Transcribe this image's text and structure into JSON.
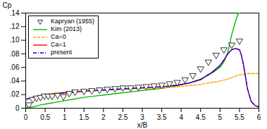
{
  "chart_data": {
    "type": "line",
    "xlabel": "x/B",
    "ylabel": "Cp",
    "xlim": [
      0,
      6
    ],
    "ylim": [
      0,
      0.14
    ],
    "xticks": [
      0,
      0.5,
      1,
      1.5,
      2,
      2.5,
      3,
      3.5,
      4,
      4.5,
      5,
      5.5,
      6
    ],
    "yticks": [
      0,
      {
        "value": 0.02,
        "label": ".02"
      },
      {
        "value": 0.04,
        "label": ".04"
      },
      {
        "value": 0.06,
        "label": ".06"
      },
      {
        "value": 0.08,
        "label": ".08"
      },
      {
        "value": 0.1,
        "label": ".10"
      },
      {
        "value": 0.12,
        "label": ".12"
      },
      {
        "value": 0.14,
        "label": ".14"
      }
    ],
    "legend": "upper left",
    "grid": false,
    "series": [
      {
        "name": "Kapryan (1955)",
        "type": "scatter",
        "marker": "triangle_down",
        "color": "#000000",
        "x": [
          0.08,
          0.18,
          0.28,
          0.38,
          0.48,
          0.58,
          0.68,
          0.82,
          0.97,
          1.12,
          1.27,
          1.5,
          1.7,
          1.9,
          2.1,
          2.3,
          2.5,
          2.7,
          2.9,
          3.1,
          3.3,
          3.5,
          3.7,
          3.9,
          4.1,
          4.3,
          4.5,
          4.7,
          4.9,
          5.1,
          5.3,
          5.5
        ],
        "values": [
          0.005,
          0.013,
          0.015,
          0.016,
          0.018,
          0.018,
          0.018,
          0.019,
          0.017,
          0.022,
          0.024,
          0.025,
          0.026,
          0.027,
          0.028,
          0.029,
          0.03,
          0.03,
          0.031,
          0.032,
          0.033,
          0.034,
          0.036,
          0.038,
          0.042,
          0.048,
          0.058,
          0.068,
          0.078,
          0.086,
          0.093,
          0.099
        ]
      },
      {
        "name": "Kim (2013)",
        "type": "line",
        "line_style": "solid",
        "color": "#00bb00",
        "x": [
          0.01,
          0.2,
          0.4,
          0.6,
          0.8,
          1.0,
          1.2,
          1.5,
          1.8,
          2.1,
          2.4,
          2.7,
          3.0,
          3.3,
          3.6,
          3.9,
          4.2,
          4.5,
          4.8,
          5.0,
          5.1,
          5.2,
          5.25,
          5.3,
          5.35,
          5.4,
          5.45,
          5.48,
          5.5
        ],
        "values": [
          0.001,
          0.002,
          0.005,
          0.007,
          0.009,
          0.011,
          0.013,
          0.016,
          0.018,
          0.02,
          0.022,
          0.024,
          0.026,
          0.028,
          0.03,
          0.033,
          0.037,
          0.043,
          0.052,
          0.06,
          0.068,
          0.082,
          0.095,
          0.108,
          0.118,
          0.128,
          0.136,
          0.14,
          0.14
        ]
      },
      {
        "name": "Ca=0",
        "type": "line",
        "line_style": "dashed",
        "color": "#FFA500",
        "x": [
          0.0,
          0.3,
          0.6,
          1.0,
          1.5,
          2.0,
          2.5,
          3.0,
          3.5,
          4.0,
          4.5,
          5.0,
          5.2,
          5.4,
          5.5,
          5.6,
          5.7,
          5.8,
          5.9,
          6.0
        ],
        "values": [
          0.013,
          0.018,
          0.021,
          0.024,
          0.026,
          0.027,
          0.028,
          0.029,
          0.03,
          0.032,
          0.035,
          0.04,
          0.043,
          0.047,
          0.049,
          0.05,
          0.051,
          0.051,
          0.051,
          0.051
        ]
      },
      {
        "name": "Ca=1",
        "type": "line",
        "line_style": "solid",
        "color": "#FF0000",
        "x": [
          0.0,
          0.2,
          0.4,
          0.6,
          0.9,
          1.2,
          1.5,
          1.8,
          2.1,
          2.4,
          2.7,
          3.0,
          3.3,
          3.6,
          3.9,
          4.2,
          4.5,
          4.8,
          5.0,
          5.1,
          5.2,
          5.3,
          5.4,
          5.45,
          5.5,
          5.52,
          5.55,
          5.6,
          5.65,
          5.7,
          5.8,
          5.9,
          6.0
        ],
        "values": [
          0.013,
          0.016,
          0.018,
          0.02,
          0.022,
          0.023,
          0.025,
          0.026,
          0.027,
          0.028,
          0.029,
          0.03,
          0.031,
          0.032,
          0.034,
          0.037,
          0.042,
          0.053,
          0.063,
          0.071,
          0.08,
          0.086,
          0.088,
          0.087,
          0.086,
          0.083,
          0.078,
          0.065,
          0.048,
          0.03,
          0.01,
          0.004,
          0.002
        ]
      },
      {
        "name": "present",
        "type": "line",
        "line_style": "dashdot",
        "color": "#0000EE",
        "x": [
          0.0,
          0.2,
          0.4,
          0.6,
          0.9,
          1.2,
          1.5,
          1.8,
          2.1,
          2.4,
          2.7,
          3.0,
          3.3,
          3.6,
          3.9,
          4.2,
          4.5,
          4.8,
          5.0,
          5.1,
          5.2,
          5.3,
          5.4,
          5.45,
          5.5,
          5.52,
          5.55,
          5.6,
          5.65,
          5.7,
          5.8,
          5.9,
          6.0
        ],
        "values": [
          0.013,
          0.016,
          0.018,
          0.02,
          0.022,
          0.023,
          0.025,
          0.026,
          0.027,
          0.028,
          0.029,
          0.03,
          0.031,
          0.032,
          0.034,
          0.037,
          0.042,
          0.053,
          0.063,
          0.071,
          0.08,
          0.086,
          0.088,
          0.087,
          0.086,
          0.083,
          0.078,
          0.065,
          0.048,
          0.03,
          0.01,
          0.004,
          0.002
        ]
      }
    ]
  }
}
